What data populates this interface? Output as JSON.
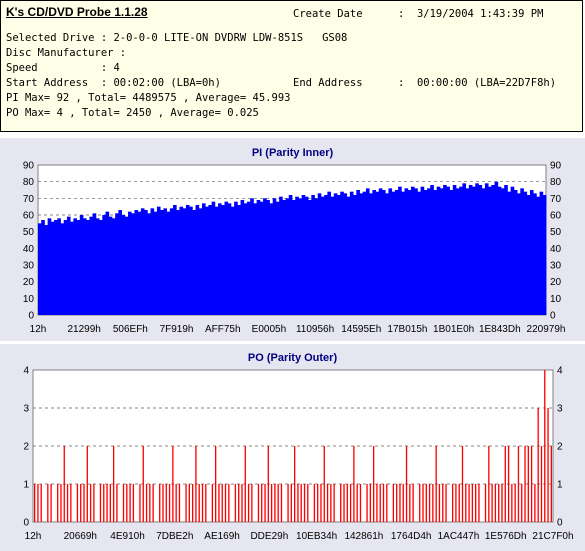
{
  "header": {
    "app_title": "K's CD/DVD Probe 1.1.28",
    "create_date_label": "Create Date",
    "create_date_value": ":  3/19/2004 1:43:39 PM",
    "lines": [
      "Selected Drive : 2-0-0-0 LITE-ON DVDRW LDW-851S   GS08",
      "Disc Manufacturer :",
      "Speed          : 4",
      "Start Address  : 00:02:00 (LBA=0h)",
      "PI Max= 92 , Total= 4489575 , Average= 45.993",
      "PO Max= 4 , Total= 2450 , Average= 0.025"
    ],
    "end_address_label": "End Address",
    "end_address_value": ":  00:00:00 (LBA=22D7F8h)"
  },
  "colors": {
    "panel_bg": "#e6e6f0",
    "plot_bg": "#ffffff",
    "pi_series": "#0000ff",
    "po_series": "#ff0000",
    "grid": "#606060",
    "title": "#000080"
  },
  "chart_data": [
    {
      "type": "bar",
      "title": "PI (Parity Inner)",
      "xlabel": "",
      "ylabel": "",
      "ylim": [
        0,
        90
      ],
      "yticks": [
        0,
        10,
        20,
        30,
        40,
        50,
        60,
        70,
        80,
        90
      ],
      "grid": true,
      "x_tick_labels": [
        "12h",
        "21299h",
        "506EFh",
        "7F919h",
        "AFF75h",
        "E0005h",
        "110956h",
        "14595Eh",
        "17B015h",
        "1B01E0h",
        "1E843Dh",
        "220979h"
      ],
      "series": [
        {
          "color": "#0000ff",
          "values": [
            55,
            57,
            54,
            58,
            56,
            57,
            58,
            55,
            57,
            59,
            56,
            58,
            57,
            60,
            58,
            57,
            59,
            61,
            58,
            57,
            60,
            62,
            59,
            58,
            61,
            63,
            60,
            59,
            62,
            61,
            63,
            62,
            64,
            63,
            61,
            64,
            62,
            65,
            63,
            64,
            62,
            64,
            66,
            63,
            65,
            64,
            66,
            65,
            63,
            66,
            64,
            67,
            65,
            66,
            68,
            65,
            67,
            66,
            68,
            67,
            65,
            68,
            66,
            69,
            67,
            68,
            70,
            67,
            69,
            68,
            70,
            69,
            67,
            70,
            68,
            71,
            69,
            70,
            72,
            69,
            71,
            70,
            72,
            71,
            69,
            72,
            70,
            73,
            71,
            72,
            74,
            71,
            73,
            72,
            74,
            73,
            71,
            74,
            72,
            75,
            73,
            74,
            76,
            73,
            75,
            74,
            76,
            75,
            73,
            76,
            74,
            75,
            77,
            74,
            76,
            75,
            77,
            76,
            74,
            77,
            75,
            76,
            78,
            75,
            77,
            76,
            78,
            77,
            75,
            78,
            76,
            77,
            79,
            76,
            78,
            77,
            79,
            78,
            76,
            79,
            77,
            78,
            80,
            77,
            76,
            78,
            74,
            77,
            75,
            73,
            76,
            74,
            72,
            75,
            73,
            71,
            74,
            72
          ]
        }
      ],
      "max_value": 92
    },
    {
      "type": "bar",
      "title": "PO (Parity Outer)",
      "xlabel": "",
      "ylabel": "",
      "ylim": [
        0,
        4
      ],
      "yticks": [
        0,
        1,
        2,
        3,
        4
      ],
      "grid": true,
      "x_tick_labels": [
        "12h",
        "20669h",
        "4E910h",
        "7DBE2h",
        "AE169h",
        "DDE29h",
        "10EB34h",
        "142861h",
        "1764D4h",
        "1AC447h",
        "1E576Dh",
        "21C7F0h"
      ],
      "series": [
        {
          "color": "#ff0000",
          "values": [
            1,
            1,
            1,
            0,
            1,
            1,
            0,
            1,
            1,
            2,
            1,
            1,
            0,
            1,
            1,
            1,
            2,
            1,
            1,
            0,
            1,
            1,
            1,
            1,
            2,
            1,
            0,
            1,
            1,
            1,
            1,
            0,
            1,
            2,
            1,
            1,
            1,
            0,
            1,
            1,
            1,
            1,
            2,
            1,
            1,
            0,
            1,
            1,
            1,
            2,
            1,
            1,
            1,
            0,
            1,
            2,
            1,
            1,
            1,
            1,
            0,
            1,
            1,
            1,
            2,
            1,
            1,
            0,
            1,
            1,
            1,
            2,
            1,
            1,
            1,
            1,
            0,
            1,
            1,
            2,
            1,
            1,
            1,
            1,
            0,
            1,
            1,
            1,
            2,
            1,
            1,
            1,
            0,
            1,
            1,
            1,
            1,
            2,
            1,
            1,
            0,
            1,
            1,
            2,
            1,
            1,
            1,
            1,
            0,
            1,
            1,
            1,
            1,
            2,
            1,
            1,
            0,
            1,
            1,
            1,
            1,
            1,
            2,
            1,
            1,
            1,
            0,
            1,
            1,
            1,
            2,
            1,
            1,
            1,
            1,
            1,
            0,
            1,
            2,
            1,
            1,
            1,
            1,
            2,
            2,
            1,
            1,
            2,
            1,
            2,
            2,
            2,
            1,
            3,
            2,
            4,
            3,
            2
          ]
        }
      ]
    }
  ]
}
